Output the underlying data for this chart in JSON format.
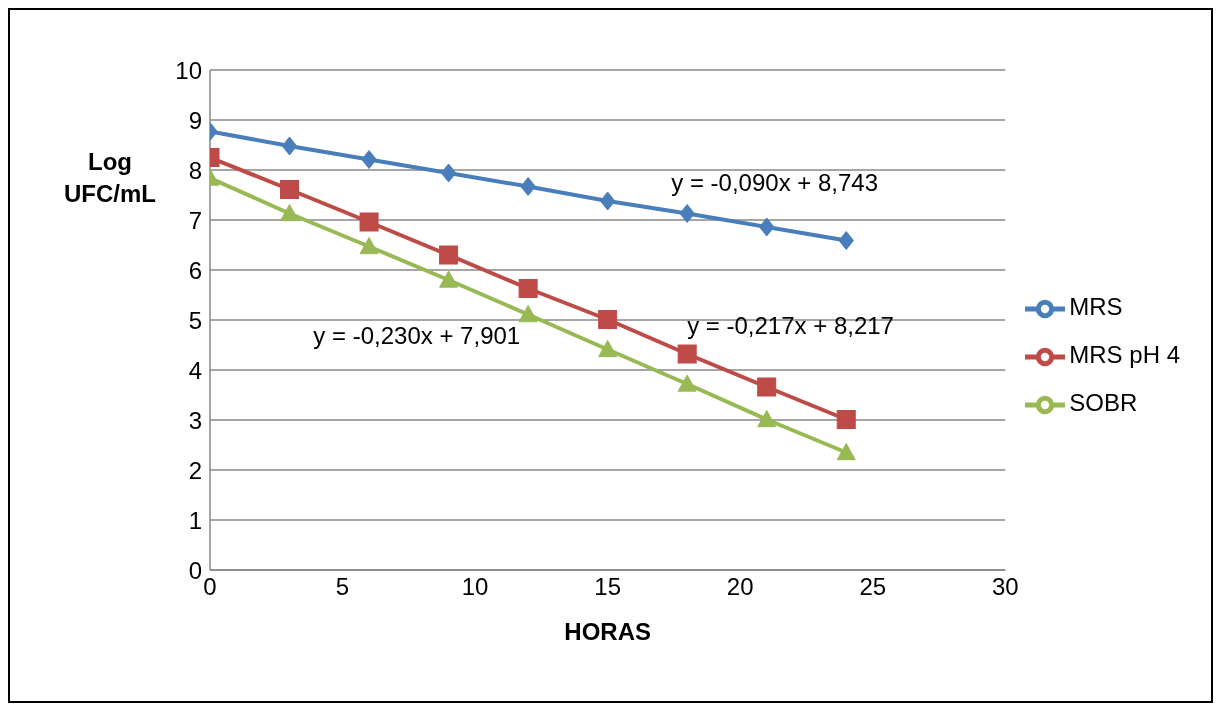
{
  "chart_data": {
    "type": "line",
    "xlabel": "HORAS",
    "ylabel": "Log UFC/mL",
    "x": [
      0,
      3,
      6,
      9,
      12,
      15,
      18,
      21,
      24
    ],
    "series": [
      {
        "name": "MRS",
        "color": "#4a7ebb",
        "marker": "diamond",
        "values": [
          8.77,
          8.48,
          8.21,
          7.94,
          7.67,
          7.38,
          7.13,
          6.86,
          6.59
        ]
      },
      {
        "name": "MRS pH 4",
        "color": "#be4b48",
        "marker": "square",
        "values": [
          8.25,
          7.61,
          6.96,
          6.3,
          5.63,
          5.01,
          4.32,
          3.66,
          3.01
        ]
      },
      {
        "name": "SOBR",
        "color": "#98b954",
        "marker": "triangle",
        "values": [
          7.84,
          7.13,
          6.47,
          5.8,
          5.11,
          4.41,
          3.72,
          3.01,
          2.35
        ]
      }
    ],
    "xlim": [
      0,
      30
    ],
    "xticks": [
      0,
      5,
      10,
      15,
      20,
      25,
      30
    ],
    "ylim": [
      0,
      10
    ],
    "yticks": [
      0,
      1,
      2,
      3,
      4,
      5,
      6,
      7,
      8,
      9,
      10
    ],
    "grid": "y",
    "legend": "right",
    "line_style": "solid",
    "annotations": [
      "y = -0,090x + 8,743",
      "y = -0,217x + 8,217",
      "y = -0,230x + 7,901"
    ]
  }
}
